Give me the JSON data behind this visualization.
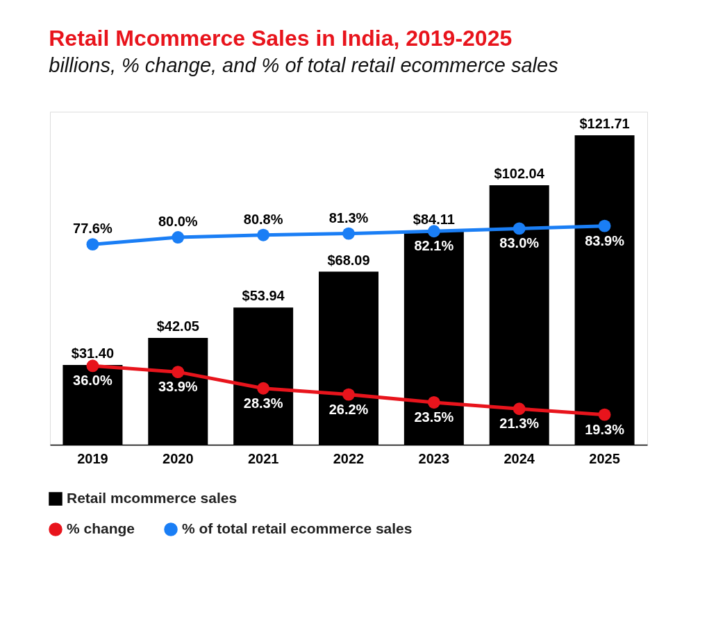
{
  "chart_data": {
    "type": "bar",
    "title": "Retail Mcommerce Sales in India, 2019-2025",
    "subtitle": "billions, % change, and % of total retail ecommerce sales",
    "categories": [
      "2019",
      "2020",
      "2021",
      "2022",
      "2023",
      "2024",
      "2025"
    ],
    "series": [
      {
        "name": "Retail mcommerce sales",
        "color": "#000000",
        "values": [
          31.4,
          42.05,
          53.94,
          68.09,
          84.11,
          102.04,
          121.71
        ],
        "value_labels": [
          "$31.40",
          "$42.05",
          "$53.94",
          "$68.09",
          "$84.11",
          "$102.04",
          "$121.71"
        ]
      },
      {
        "name": "% change",
        "type": "line",
        "axis": "y2",
        "color": "#e8141c",
        "values": [
          36.0,
          33.9,
          28.3,
          26.2,
          23.5,
          21.3,
          19.3
        ],
        "value_labels": [
          "36.0%",
          "33.9%",
          "28.3%",
          "26.2%",
          "23.5%",
          "21.3%",
          "19.3%"
        ]
      },
      {
        "name": "% of total retail ecommerce sales",
        "type": "line",
        "axis": "y2",
        "color": "#1a7ef5",
        "values": [
          77.6,
          80.0,
          80.8,
          81.3,
          82.1,
          83.0,
          83.9
        ],
        "value_labels": [
          "77.6%",
          "80.0%",
          "80.8%",
          "81.3%",
          "82.1%",
          "83.0%",
          "83.9%"
        ]
      }
    ],
    "ylim": [
      0,
      131
    ],
    "y2lim": [
      9,
      123
    ],
    "tick_labels": "x",
    "grid": false,
    "legend": "bottom left",
    "marker": "circle"
  }
}
